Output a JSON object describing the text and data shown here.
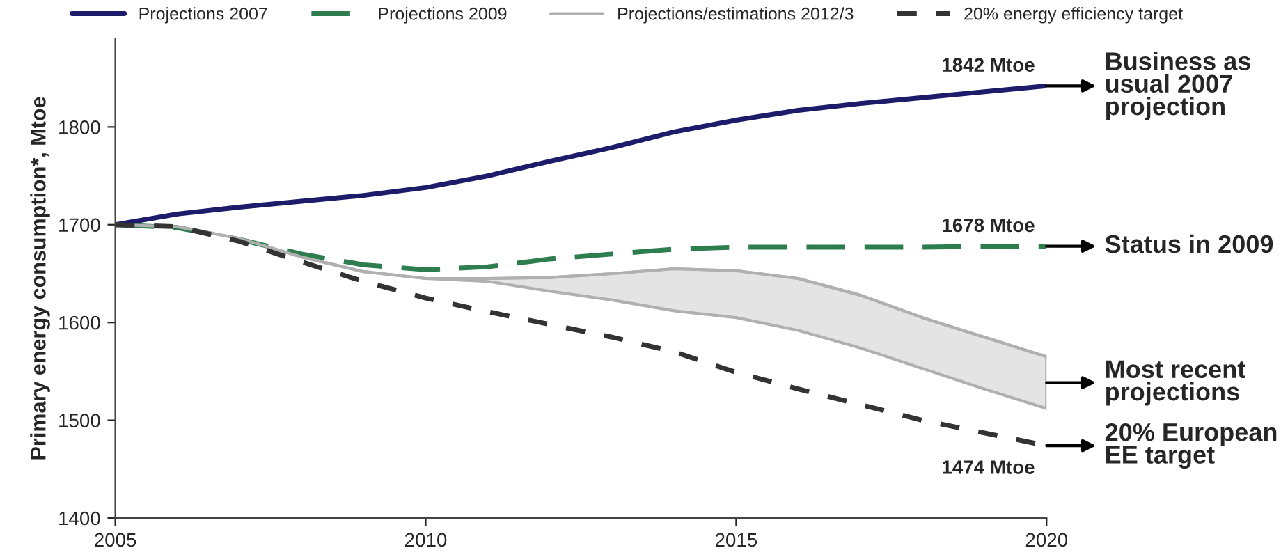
{
  "chart_data": {
    "type": "line",
    "ylabel": "Primary energy consumption*, Mtoe",
    "x": [
      2005,
      2006,
      2007,
      2008,
      2009,
      2010,
      2011,
      2012,
      2013,
      2014,
      2015,
      2016,
      2017,
      2018,
      2019,
      2020
    ],
    "series": [
      {
        "name": "Projections 2007",
        "color": "#1c1c6b",
        "line_style": "solid",
        "values": [
          1700,
          1711,
          1718,
          1724,
          1730,
          1738,
          1750,
          1765,
          1779,
          1795,
          1807,
          1817,
          1824,
          1830,
          1836,
          1842
        ],
        "value_labels": [
          null,
          null,
          null,
          null,
          null,
          null,
          null,
          null,
          null,
          null,
          null,
          null,
          null,
          null,
          null,
          "1842 Mtoe"
        ]
      },
      {
        "name": "Projections 2009",
        "color": "#2e7d4f",
        "line_style": "dashed",
        "values": [
          1700,
          1697,
          1685,
          1670,
          1659,
          1654,
          1657,
          1665,
          1670,
          1675,
          1677,
          1677,
          1677,
          1677,
          1678,
          1678
        ],
        "value_labels": [
          null,
          null,
          null,
          null,
          null,
          null,
          null,
          null,
          null,
          null,
          null,
          null,
          null,
          null,
          null,
          "1678 Mtoe"
        ]
      },
      {
        "name": "Projections/estimations 2012/3",
        "color": "#b0b0b0",
        "line_style": "solid",
        "values": [
          1700,
          1698,
          1686,
          1667,
          1652,
          1645,
          1645,
          1646,
          1650,
          1655,
          1653,
          1645,
          1628,
          1605,
          1585,
          1565
        ],
        "lower": [
          1700,
          1698,
          1686,
          1667,
          1652,
          1645,
          1642,
          1632,
          1623,
          1612,
          1605,
          1592,
          1574,
          1553,
          1532,
          1512
        ],
        "upper": [
          1700,
          1698,
          1686,
          1667,
          1652,
          1645,
          1645,
          1646,
          1650,
          1655,
          1653,
          1645,
          1628,
          1605,
          1585,
          1565
        ]
      },
      {
        "name": "20% energy efficiency target",
        "color": "#333333",
        "line_style": "dotted",
        "values": [
          1700,
          1698,
          1683,
          1662,
          1642,
          1625,
          1611,
          1598,
          1585,
          1570,
          1549,
          1532,
          1516,
          1500,
          1487,
          1474
        ],
        "value_labels": [
          null,
          null,
          null,
          null,
          null,
          null,
          null,
          null,
          null,
          null,
          null,
          null,
          null,
          null,
          null,
          "1474 Mtoe"
        ]
      }
    ],
    "annotations": [
      "Business as\nusual 2007\nprojection",
      "Status in 2009",
      "Most recent\nprojections",
      "20% European\nEE target"
    ],
    "xlim": [
      2005,
      2020
    ],
    "xticks": [
      2005,
      2010,
      2015,
      2020
    ],
    "ylim": [
      1400,
      1890
    ],
    "yticks": [
      1400,
      1500,
      1600,
      1700,
      1800
    ],
    "grid": false,
    "legend": "top",
    "marker": "none"
  }
}
